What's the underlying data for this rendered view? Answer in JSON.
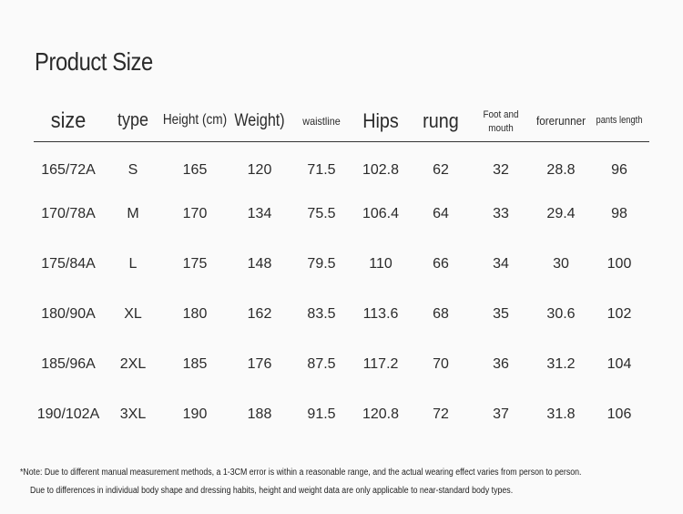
{
  "header": {
    "title": "Product Size"
  },
  "table": {
    "columns": [
      "size",
      "type",
      "Height (cm)",
      "Weight)",
      "waistline",
      "Hips",
      "rung",
      "Foot and mouth",
      "forerunner",
      "pants length"
    ],
    "rows": [
      [
        "165/72A",
        "S",
        "165",
        "120",
        "71.5",
        "102.8",
        "62",
        "32",
        "28.8",
        "96"
      ],
      [
        "170/78A",
        "M",
        "170",
        "134",
        "75.5",
        "106.4",
        "64",
        "33",
        "29.4",
        "98"
      ],
      [
        "175/84A",
        "L",
        "175",
        "148",
        "79.5",
        "110",
        "66",
        "34",
        "30",
        "100"
      ],
      [
        "180/90A",
        "XL",
        "180",
        "162",
        "83.5",
        "113.6",
        "68",
        "35",
        "30.6",
        "102"
      ],
      [
        "185/96A",
        "2XL",
        "185",
        "176",
        "87.5",
        "117.2",
        "70",
        "36",
        "31.2",
        "104"
      ],
      [
        "190/102A",
        "3XL",
        "190",
        "188",
        "91.5",
        "120.8",
        "72",
        "37",
        "31.8",
        "106"
      ]
    ]
  },
  "notes": [
    "*Note: Due to different manual measurement methods, a 1-3CM error is within a reasonable range, and the actual wearing effect varies from person to person.",
    "Due to differences in individual body shape and dressing habits, height and weight data are only applicable to near-standard body types."
  ]
}
